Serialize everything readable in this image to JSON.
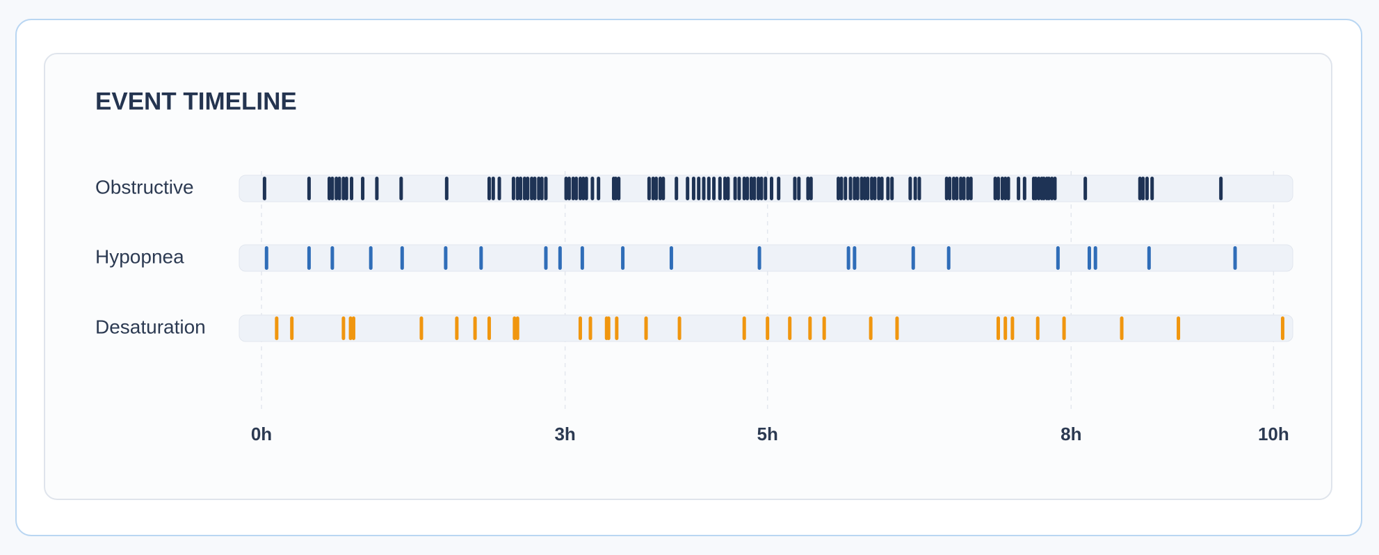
{
  "chart_data": {
    "type": "timeline",
    "title": "EVENT TIMELINE",
    "xlim": [
      -0.22,
      10.19
    ],
    "xticks": [
      {
        "value": 0,
        "label": "0h"
      },
      {
        "value": 3,
        "label": "3h"
      },
      {
        "value": 5,
        "label": "5h"
      },
      {
        "value": 8,
        "label": "8h"
      },
      {
        "value": 10,
        "label": "10h"
      }
    ],
    "grid": true,
    "series": [
      {
        "name": "Obstructive",
        "color": "#1e3355",
        "values": [
          0.03,
          0.47,
          0.67,
          0.7,
          0.74,
          0.77,
          0.81,
          0.84,
          0.89,
          1.0,
          1.14,
          1.38,
          1.83,
          2.25,
          2.29,
          2.35,
          2.49,
          2.53,
          2.56,
          2.6,
          2.63,
          2.67,
          2.7,
          2.74,
          2.77,
          2.81,
          3.01,
          3.04,
          3.08,
          3.11,
          3.15,
          3.18,
          3.21,
          3.27,
          3.33,
          3.48,
          3.5,
          3.53,
          3.83,
          3.87,
          3.9,
          3.94,
          3.97,
          4.1,
          4.21,
          4.27,
          4.32,
          4.37,
          4.42,
          4.47,
          4.53,
          4.58,
          4.61,
          4.68,
          4.72,
          4.77,
          4.8,
          4.84,
          4.87,
          4.91,
          4.94,
          4.98,
          5.04,
          5.11,
          5.27,
          5.31,
          5.4,
          5.43,
          5.7,
          5.73,
          5.77,
          5.82,
          5.86,
          5.89,
          5.93,
          5.96,
          5.99,
          6.03,
          6.06,
          6.1,
          6.13,
          6.19,
          6.23,
          6.41,
          6.46,
          6.5,
          6.77,
          6.8,
          6.84,
          6.87,
          6.91,
          6.94,
          6.98,
          7.01,
          7.25,
          7.28,
          7.32,
          7.35,
          7.38,
          7.48,
          7.54,
          7.63,
          7.65,
          7.68,
          7.71,
          7.73,
          7.76,
          7.78,
          7.81,
          7.84,
          8.14,
          8.68,
          8.71,
          8.75,
          8.8,
          9.48
        ]
      },
      {
        "name": "Hypopnea",
        "color": "#2f6db8",
        "values": [
          0.05,
          0.47,
          0.7,
          1.08,
          1.39,
          1.82,
          2.17,
          2.81,
          2.95,
          3.17,
          3.57,
          4.05,
          4.92,
          5.8,
          5.86,
          6.44,
          6.79,
          7.87,
          8.18,
          8.24,
          8.77,
          9.62
        ]
      },
      {
        "name": "Desaturation",
        "color": "#f0960f",
        "values": [
          0.15,
          0.3,
          0.81,
          0.88,
          0.91,
          1.58,
          1.93,
          2.11,
          2.25,
          2.5,
          2.53,
          3.15,
          3.25,
          3.41,
          3.43,
          3.51,
          3.8,
          4.13,
          4.77,
          5.0,
          5.22,
          5.42,
          5.56,
          6.02,
          6.28,
          7.28,
          7.35,
          7.42,
          7.67,
          7.93,
          8.5,
          9.06,
          10.09
        ]
      }
    ]
  }
}
